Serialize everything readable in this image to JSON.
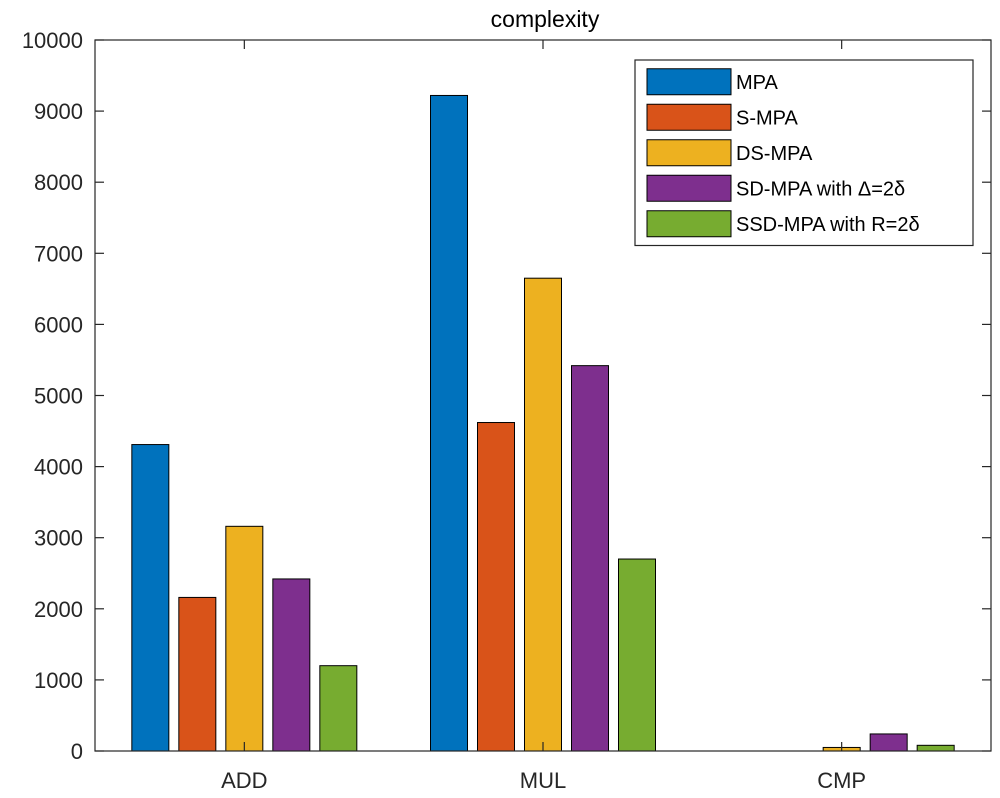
{
  "chart_data": {
    "type": "bar",
    "title": "complexity",
    "xlabel": "",
    "ylabel": "",
    "categories": [
      "ADD",
      "MUL",
      "CMP"
    ],
    "ylim": [
      0,
      10000
    ],
    "yticks": [
      0,
      1000,
      2000,
      3000,
      4000,
      5000,
      6000,
      7000,
      8000,
      9000,
      10000
    ],
    "grid": false,
    "legend_position": "top-right",
    "series": [
      {
        "name": "MPA",
        "color": "#0072BD",
        "values": [
          4310,
          9220,
          0
        ]
      },
      {
        "name": "S-MPA",
        "color": "#D95319",
        "values": [
          2160,
          4620,
          0
        ]
      },
      {
        "name": "DS-MPA",
        "color": "#EDB120",
        "values": [
          3160,
          6650,
          50
        ]
      },
      {
        "name": "SD-MPA with Δ=2δ",
        "color": "#7E2F8E",
        "values": [
          2420,
          5420,
          240
        ]
      },
      {
        "name": "SSD-MPA with R=2δ",
        "color": "#77AC30",
        "values": [
          1200,
          2700,
          80
        ]
      }
    ]
  }
}
